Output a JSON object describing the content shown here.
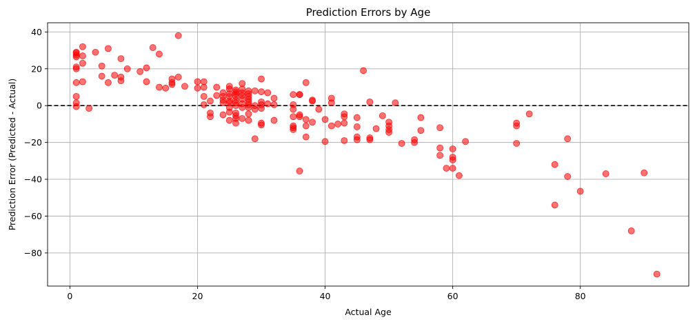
{
  "chart_data": {
    "type": "scatter",
    "title": "Prediction Errors by Age",
    "xlabel": "Actual Age",
    "ylabel": "Prediction Error (Predicted - Actual)",
    "xlim": [
      -3.5,
      97
    ],
    "ylim": [
      -98,
      45
    ],
    "xticks": [
      0,
      20,
      40,
      60,
      80
    ],
    "yticks": [
      40,
      20,
      0,
      -20,
      -40,
      -60,
      -80
    ],
    "xtick_labels": [
      "0",
      "20",
      "40",
      "60",
      "80"
    ],
    "ytick_labels": [
      "40",
      "20",
      "0",
      "−20",
      "−40",
      "−60",
      "−80"
    ],
    "grid": true,
    "reference_line": {
      "y": 0,
      "style": "dashed",
      "color": "#000000"
    },
    "marker_color": "#ff0000",
    "marker_opacity": 0.55,
    "points": [
      [
        1,
        29
      ],
      [
        1,
        28.5
      ],
      [
        1,
        27.5
      ],
      [
        1,
        26.5
      ],
      [
        1,
        21
      ],
      [
        1,
        20
      ],
      [
        1,
        12.5
      ],
      [
        1,
        5
      ],
      [
        1,
        1.5
      ],
      [
        1,
        -0.5
      ],
      [
        2,
        32
      ],
      [
        2,
        27
      ],
      [
        2,
        23
      ],
      [
        2,
        13
      ],
      [
        3,
        -1.5
      ],
      [
        4,
        29
      ],
      [
        5,
        21.5
      ],
      [
        5,
        16
      ],
      [
        6,
        31
      ],
      [
        6,
        12.5
      ],
      [
        7,
        16.5
      ],
      [
        8,
        25.5
      ],
      [
        8,
        15.5
      ],
      [
        8,
        13.5
      ],
      [
        9,
        20
      ],
      [
        11,
        18.5
      ],
      [
        12,
        20.5
      ],
      [
        12,
        13
      ],
      [
        13,
        31.5
      ],
      [
        14,
        28
      ],
      [
        14,
        10
      ],
      [
        15,
        9.5
      ],
      [
        16,
        14.5
      ],
      [
        16,
        12.5
      ],
      [
        16,
        11.5
      ],
      [
        17,
        38
      ],
      [
        17,
        15.5
      ],
      [
        18,
        10.5
      ],
      [
        20,
        13
      ],
      [
        20,
        9.5
      ],
      [
        21,
        13
      ],
      [
        21,
        10
      ],
      [
        21,
        5
      ],
      [
        21,
        0.5
      ],
      [
        22,
        2.5
      ],
      [
        22,
        -4
      ],
      [
        22,
        -6
      ],
      [
        23,
        10
      ],
      [
        23,
        5.5
      ],
      [
        24,
        7
      ],
      [
        24,
        5
      ],
      [
        24,
        3
      ],
      [
        24,
        1.5
      ],
      [
        24,
        -5
      ],
      [
        25,
        10.5
      ],
      [
        25,
        9
      ],
      [
        25,
        6.5
      ],
      [
        25,
        5
      ],
      [
        25,
        2.5
      ],
      [
        25,
        1.5
      ],
      [
        25,
        -1
      ],
      [
        25,
        -3.5
      ],
      [
        25,
        -8
      ],
      [
        26,
        8.5
      ],
      [
        26,
        7.5
      ],
      [
        26,
        6.5
      ],
      [
        26,
        5
      ],
      [
        26,
        3
      ],
      [
        26,
        1.5
      ],
      [
        26,
        0
      ],
      [
        26,
        -4
      ],
      [
        26,
        -5.5
      ],
      [
        26,
        -7
      ],
      [
        26,
        -9.5
      ],
      [
        27,
        12
      ],
      [
        27,
        9
      ],
      [
        27,
        7
      ],
      [
        27,
        5.5
      ],
      [
        27,
        3.5
      ],
      [
        27,
        1
      ],
      [
        27,
        -1
      ],
      [
        27,
        -7
      ],
      [
        28,
        8
      ],
      [
        28,
        6.5
      ],
      [
        28,
        5
      ],
      [
        28,
        3.5
      ],
      [
        28,
        2
      ],
      [
        28,
        0.5
      ],
      [
        28,
        -1
      ],
      [
        28,
        -4.5
      ],
      [
        28,
        -8
      ],
      [
        29,
        8
      ],
      [
        29,
        0
      ],
      [
        29,
        -2
      ],
      [
        29,
        -18
      ],
      [
        30,
        14.5
      ],
      [
        30,
        7.5
      ],
      [
        30,
        2
      ],
      [
        30,
        0.5
      ],
      [
        30,
        -1.5
      ],
      [
        30,
        -9.5
      ],
      [
        30,
        -10.5
      ],
      [
        31,
        7
      ],
      [
        31,
        1
      ],
      [
        32,
        4
      ],
      [
        32,
        0.5
      ],
      [
        32,
        -8
      ],
      [
        35,
        6
      ],
      [
        35,
        0.5
      ],
      [
        35,
        -2
      ],
      [
        35,
        -6
      ],
      [
        35,
        -11
      ],
      [
        35,
        -12
      ],
      [
        35,
        -13
      ],
      [
        36,
        6
      ],
      [
        36,
        6
      ],
      [
        36,
        -5
      ],
      [
        36,
        -6
      ],
      [
        36,
        -35.5
      ],
      [
        37,
        12.5
      ],
      [
        37,
        -7.5
      ],
      [
        37,
        -11
      ],
      [
        37,
        -17
      ],
      [
        38,
        3
      ],
      [
        38,
        2.5
      ],
      [
        38,
        -9
      ],
      [
        39,
        -2
      ],
      [
        40,
        -7.5
      ],
      [
        40,
        -19.5
      ],
      [
        41,
        4
      ],
      [
        41,
        1.5
      ],
      [
        41,
        -11
      ],
      [
        42,
        -10
      ],
      [
        43,
        -4.5
      ],
      [
        43,
        -6
      ],
      [
        43,
        -9.5
      ],
      [
        43,
        -19
      ],
      [
        45,
        -6.5
      ],
      [
        45,
        -11.5
      ],
      [
        45,
        -17
      ],
      [
        45,
        -18.5
      ],
      [
        46,
        19
      ],
      [
        47,
        2
      ],
      [
        47,
        -17.5
      ],
      [
        47,
        -18.5
      ],
      [
        48,
        -12.5
      ],
      [
        49,
        -5.5
      ],
      [
        50,
        -9
      ],
      [
        50,
        -11
      ],
      [
        50,
        -13
      ],
      [
        50,
        -14.5
      ],
      [
        51,
        1.5
      ],
      [
        52,
        -20.5
      ],
      [
        54,
        -18.5
      ],
      [
        54,
        -20
      ],
      [
        55,
        -6.5
      ],
      [
        55,
        -13.5
      ],
      [
        58,
        -12
      ],
      [
        58,
        -23
      ],
      [
        58,
        -27
      ],
      [
        59,
        -34
      ],
      [
        60,
        -23.5
      ],
      [
        60,
        -28
      ],
      [
        60,
        -29.5
      ],
      [
        60,
        -34
      ],
      [
        61,
        -38
      ],
      [
        62,
        -19.5
      ],
      [
        70,
        -9.5
      ],
      [
        70,
        -11
      ],
      [
        70,
        -20.5
      ],
      [
        72,
        -4.5
      ],
      [
        76,
        -32
      ],
      [
        76,
        -54
      ],
      [
        78,
        -18
      ],
      [
        78,
        -38.5
      ],
      [
        80,
        -46.5
      ],
      [
        84,
        -37
      ],
      [
        88,
        -68
      ],
      [
        90,
        -36.5
      ],
      [
        92,
        -91.5
      ]
    ]
  }
}
